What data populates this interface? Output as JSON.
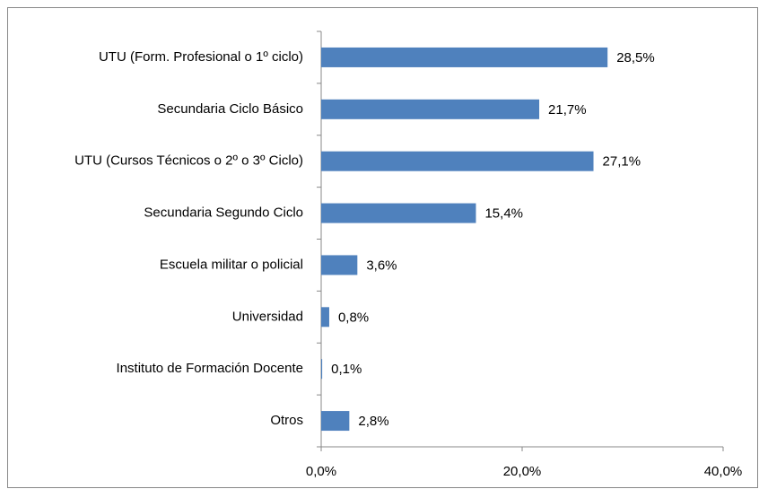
{
  "chart_data": {
    "type": "barh",
    "categories": [
      "UTU (Form. Profesional o 1º ciclo)",
      "Secundaria Ciclo Básico",
      "UTU (Cursos Técnicos o 2º o 3º Ciclo)",
      "Secundaria Segundo Ciclo",
      "Escuela militar  o policial",
      "Universidad",
      "Instituto de Formación Docente",
      "Otros"
    ],
    "values": [
      28.5,
      21.7,
      27.1,
      15.4,
      3.6,
      0.8,
      0.1,
      2.8
    ],
    "value_labels": [
      "28,5%",
      "21,7%",
      "27,1%",
      "15,4%",
      "3,6%",
      "0,8%",
      "0,1%",
      "2,8%"
    ],
    "color": "#4f81bd",
    "xlim": [
      0,
      40
    ],
    "xticks": [
      {
        "value": 0,
        "label": "0,0%"
      },
      {
        "value": 20,
        "label": "20,0%"
      },
      {
        "value": 40,
        "label": "40,0%"
      }
    ],
    "grid": false
  }
}
